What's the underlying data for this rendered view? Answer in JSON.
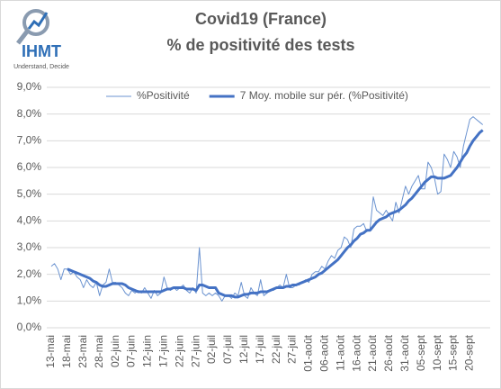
{
  "logo": {
    "name": "IHMT",
    "tagline": "Understand, Decide"
  },
  "chart_data": {
    "type": "line",
    "title": "Covid19 (France)",
    "subtitle": "% de positivité des tests",
    "categories": [
      "13-mai",
      null,
      null,
      null,
      null,
      "18-mai",
      null,
      null,
      null,
      null,
      "23-mai",
      null,
      null,
      null,
      null,
      "28-mai",
      null,
      null,
      null,
      null,
      "02-juin",
      null,
      null,
      null,
      null,
      "07-juin",
      null,
      null,
      null,
      null,
      "12-juin",
      null,
      null,
      null,
      null,
      "17-juin",
      null,
      null,
      null,
      null,
      "22-juin",
      null,
      null,
      null,
      null,
      "27-juin",
      null,
      null,
      null,
      null,
      "02-juil",
      null,
      null,
      null,
      null,
      "07-juil",
      null,
      null,
      null,
      null,
      "12-juil",
      null,
      null,
      null,
      null,
      "17-juil",
      null,
      null,
      null,
      null,
      "22-juil",
      null,
      null,
      null,
      null,
      "27-juil",
      null,
      null,
      null,
      null,
      "01-août",
      null,
      null,
      null,
      null,
      "06-août",
      null,
      null,
      null,
      null,
      "11-août",
      null,
      null,
      null,
      null,
      "16-août",
      null,
      null,
      null,
      null,
      "21-août",
      null,
      null,
      null,
      null,
      "26-août",
      null,
      null,
      null,
      null,
      "31-août",
      null,
      null,
      null,
      null,
      "05-sept",
      null,
      null,
      null,
      null,
      "10-sept",
      null,
      null,
      null,
      null,
      "15-sept",
      null,
      null,
      null,
      null,
      "20-sept",
      null,
      null,
      null,
      null
    ],
    "series": [
      {
        "name": "%Positivité",
        "color": "#6b93d0",
        "width": 1,
        "values": [
          2.3,
          2.4,
          2.2,
          1.8,
          2.2,
          2.2,
          2.0,
          2.1,
          1.9,
          1.8,
          1.5,
          1.8,
          1.6,
          1.5,
          1.7,
          1.2,
          1.6,
          1.7,
          2.2,
          1.7,
          1.7,
          1.6,
          1.5,
          1.3,
          1.2,
          1.4,
          1.3,
          1.4,
          1.3,
          1.5,
          1.3,
          1.1,
          1.4,
          1.2,
          1.3,
          1.9,
          1.5,
          1.4,
          1.5,
          1.4,
          1.5,
          1.6,
          1.4,
          1.3,
          1.5,
          1.3,
          3.0,
          1.3,
          1.2,
          1.3,
          1.2,
          1.3,
          1.2,
          1.0,
          1.2,
          1.2,
          1.1,
          1.3,
          1.2,
          1.7,
          1.2,
          1.1,
          1.5,
          1.3,
          1.2,
          1.8,
          1.2,
          1.3,
          1.4,
          1.4,
          1.5,
          1.6,
          1.5,
          2.0,
          1.5,
          1.5,
          1.6,
          1.6,
          1.7,
          1.8,
          1.7,
          2.0,
          2.1,
          2.1,
          2.3,
          2.2,
          2.5,
          2.7,
          2.6,
          2.9,
          3.0,
          3.4,
          3.3,
          3.0,
          3.7,
          3.8,
          3.8,
          3.9,
          3.6,
          3.7,
          4.9,
          4.4,
          4.3,
          4.2,
          4.4,
          4.2,
          4.0,
          4.7,
          4.3,
          4.8,
          5.3,
          5.0,
          5.3,
          5.5,
          5.7,
          5.2,
          5.2,
          6.2,
          6.0,
          5.6,
          5.0,
          5.1,
          6.5,
          6.3,
          6.0,
          6.6,
          6.4,
          6.0,
          6.8,
          7.3,
          7.8,
          7.9,
          7.8,
          7.7,
          7.6
        ]
      },
      {
        "name": "7 Moy. mobile sur pér. (%Positivité)",
        "color": "#4472c4",
        "width": 3,
        "values": [
          null,
          null,
          null,
          null,
          null,
          2.2,
          2.15,
          2.1,
          2.05,
          2.0,
          1.95,
          1.9,
          1.85,
          1.75,
          1.7,
          1.6,
          1.55,
          1.55,
          1.6,
          1.65,
          1.65,
          1.65,
          1.65,
          1.6,
          1.5,
          1.45,
          1.4,
          1.35,
          1.35,
          1.35,
          1.35,
          1.35,
          1.35,
          1.35,
          1.35,
          1.4,
          1.45,
          1.45,
          1.5,
          1.5,
          1.5,
          1.5,
          1.45,
          1.45,
          1.45,
          1.4,
          1.6,
          1.6,
          1.55,
          1.5,
          1.5,
          1.5,
          1.3,
          1.25,
          1.2,
          1.2,
          1.2,
          1.15,
          1.15,
          1.2,
          1.25,
          1.25,
          1.3,
          1.3,
          1.3,
          1.35,
          1.35,
          1.35,
          1.4,
          1.45,
          1.5,
          1.5,
          1.5,
          1.55,
          1.55,
          1.6,
          1.6,
          1.65,
          1.7,
          1.75,
          1.8,
          1.85,
          1.9,
          2.0,
          2.05,
          2.15,
          2.25,
          2.35,
          2.45,
          2.55,
          2.7,
          2.85,
          3.0,
          3.1,
          3.25,
          3.35,
          3.5,
          3.55,
          3.65,
          3.65,
          3.8,
          3.95,
          4.05,
          4.1,
          4.15,
          4.25,
          4.3,
          4.35,
          4.4,
          4.5,
          4.6,
          4.75,
          4.85,
          5.0,
          5.15,
          5.3,
          5.45,
          5.55,
          5.65,
          5.65,
          5.6,
          5.6,
          5.6,
          5.65,
          5.7,
          5.85,
          6.0,
          6.2,
          6.4,
          6.55,
          6.8,
          7.0,
          7.15,
          7.3,
          7.4
        ]
      }
    ],
    "ylim": [
      0,
      9
    ],
    "yticks": [
      {
        "value": 0,
        "label": "0,0%"
      },
      {
        "value": 1,
        "label": "1,0%"
      },
      {
        "value": 2,
        "label": "2,0%"
      },
      {
        "value": 3,
        "label": "3,0%"
      },
      {
        "value": 4,
        "label": "4,0%"
      },
      {
        "value": 5,
        "label": "5,0%"
      },
      {
        "value": 6,
        "label": "6,0%"
      },
      {
        "value": 7,
        "label": "7,0%"
      },
      {
        "value": 8,
        "label": "8,0%"
      },
      {
        "value": 9,
        "label": "9,0%"
      }
    ],
    "grid": true,
    "legend": "top"
  }
}
